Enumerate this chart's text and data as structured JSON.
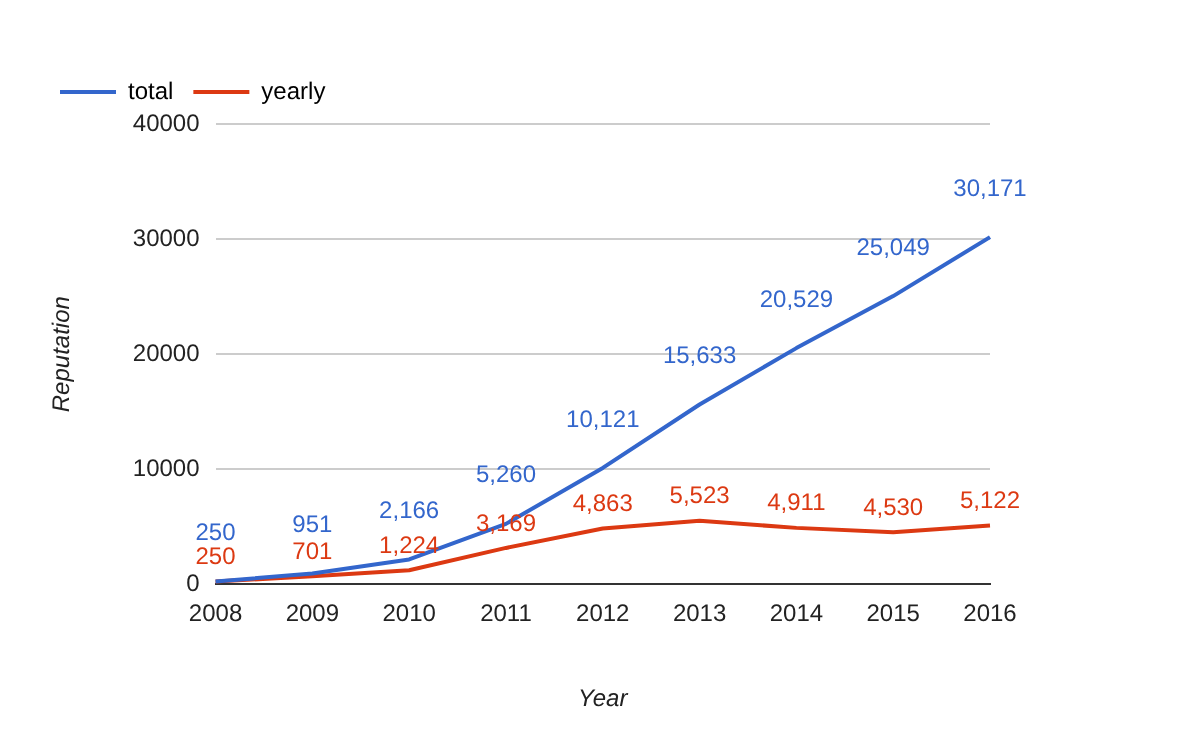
{
  "chart_data": {
    "type": "line",
    "categories": [
      "2008",
      "2009",
      "2010",
      "2011",
      "2012",
      "2013",
      "2014",
      "2015",
      "2016"
    ],
    "series": [
      {
        "name": "total",
        "color": "#3366cc",
        "values": [
          250,
          951,
          2166,
          5260,
          10121,
          15633,
          20529,
          25049,
          30171
        ],
        "value_labels": [
          "250",
          "951",
          "2,166",
          "5,260",
          "10,121",
          "15,633",
          "20,529",
          "25,049",
          "30,171"
        ]
      },
      {
        "name": "yearly",
        "color": "#dc3912",
        "values": [
          250,
          701,
          1224,
          3169,
          4863,
          5523,
          4911,
          4530,
          5122
        ],
        "value_labels": [
          "250",
          "701",
          "1,224",
          "3,169",
          "4,863",
          "5,523",
          "4,911",
          "4,530",
          "5,122"
        ]
      }
    ],
    "xlabel": "Year",
    "ylabel": "Reputation",
    "ylim": [
      0,
      40000
    ],
    "yticks": [
      0,
      10000,
      20000,
      30000,
      40000
    ],
    "grid": "y",
    "legend": "top left",
    "marker": "none"
  }
}
